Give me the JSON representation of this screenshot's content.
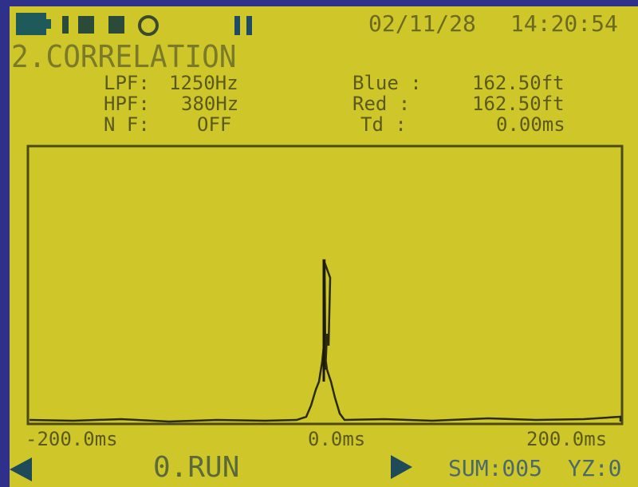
{
  "header": {
    "date": "02/11/28",
    "time": "14:20:54",
    "mode": "2.CORRELATION"
  },
  "settings": [
    {
      "label": "LPF:",
      "value": "1250Hz"
    },
    {
      "label": "HPF:",
      "value": "380Hz"
    },
    {
      "label": "N F:",
      "value": "OFF"
    }
  ],
  "readings": [
    {
      "label": "Blue :",
      "value": "162.50ft"
    },
    {
      "label": "Red :",
      "value": "162.50ft"
    },
    {
      "label": "Td :",
      "value": "0.00ms"
    }
  ],
  "plot": {
    "x_labels": [
      "-200.0ms",
      "0.0ms",
      "200.0ms"
    ]
  },
  "footer": {
    "status": "0.RUN",
    "sum": "SUM:005",
    "yz": "YZ:0"
  }
}
